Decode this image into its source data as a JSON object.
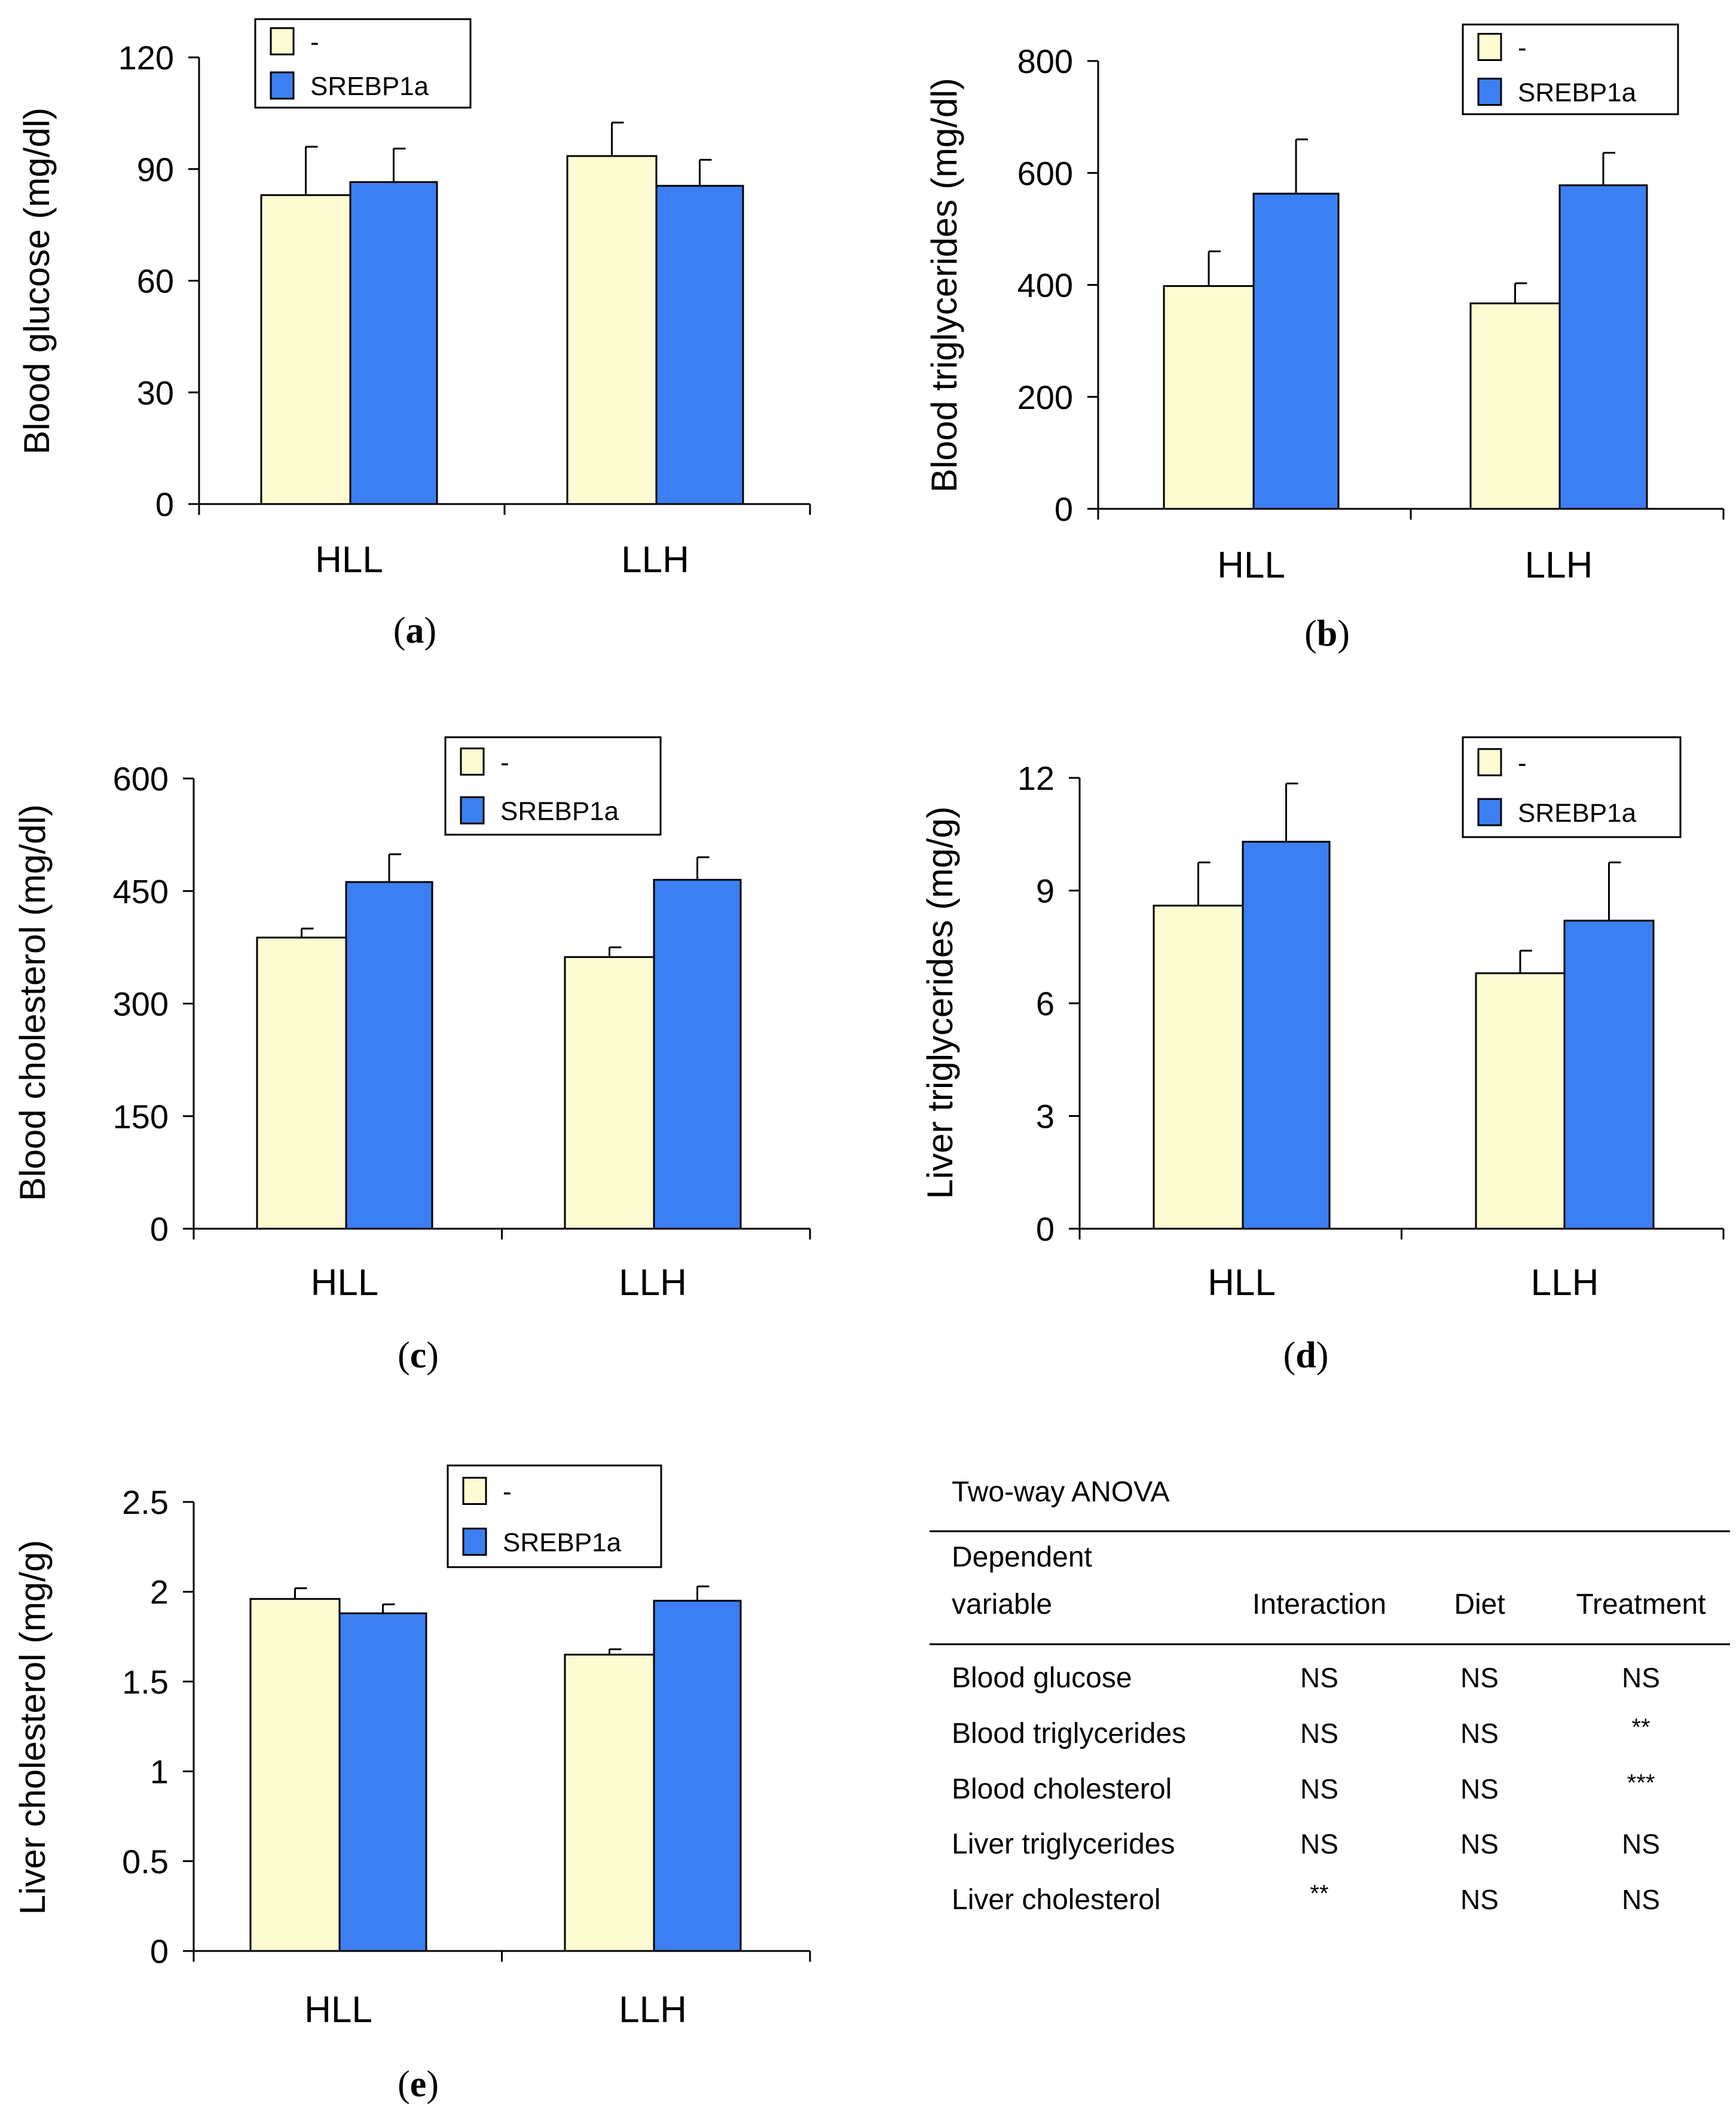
{
  "colors": {
    "control": "#fdfbd2",
    "srebp1a": "#3c7ff2",
    "stroke": "#000000"
  },
  "legend": [
    "-",
    "SREBP1a"
  ],
  "chart_data": [
    {
      "id": "a",
      "type": "bar",
      "panel_label": "a",
      "ylabel": "Blood glucose (mg/dl)",
      "categories": [
        "HLL",
        "LLH"
      ],
      "ylim": [
        0,
        120
      ],
      "yticks": [
        0,
        30,
        60,
        90,
        120
      ],
      "series": [
        {
          "name": "-",
          "values": [
            83,
            93.5
          ],
          "errors": [
            13,
            9
          ]
        },
        {
          "name": "SREBP1a",
          "values": [
            86.5,
            85.5
          ],
          "errors": [
            9,
            7
          ]
        }
      ]
    },
    {
      "id": "b",
      "type": "bar",
      "panel_label": "b",
      "ylabel": "Blood triglycerides (mg/dl)",
      "categories": [
        "HLL",
        "LLH"
      ],
      "ylim": [
        0,
        800
      ],
      "yticks": [
        0,
        200,
        400,
        600,
        800
      ],
      "series": [
        {
          "name": "-",
          "values": [
            398,
            367
          ],
          "errors": [
            62,
            36
          ]
        },
        {
          "name": "SREBP1a",
          "values": [
            563,
            578
          ],
          "errors": [
            97,
            58
          ]
        }
      ]
    },
    {
      "id": "c",
      "type": "bar",
      "panel_label": "c",
      "ylabel": "Blood cholesterol (mg/dl)",
      "categories": [
        "HLL",
        "LLH"
      ],
      "ylim": [
        0,
        600
      ],
      "yticks": [
        0,
        150,
        300,
        450,
        600
      ],
      "series": [
        {
          "name": "-",
          "values": [
            388,
            362
          ],
          "errors": [
            12,
            13
          ]
        },
        {
          "name": "SREBP1a",
          "values": [
            462,
            465
          ],
          "errors": [
            37,
            30
          ]
        }
      ]
    },
    {
      "id": "d",
      "type": "bar",
      "panel_label": "d",
      "ylabel": "Liver triglycerides (mg/g)",
      "categories": [
        "HLL",
        "LLH"
      ],
      "ylim": [
        0,
        12
      ],
      "yticks": [
        0,
        3,
        6,
        9,
        12
      ],
      "series": [
        {
          "name": "-",
          "values": [
            8.6,
            6.8
          ],
          "errors": [
            1.15,
            0.6
          ]
        },
        {
          "name": "SREBP1a",
          "values": [
            10.3,
            8.2
          ],
          "errors": [
            1.55,
            1.55
          ]
        }
      ]
    },
    {
      "id": "e",
      "type": "bar",
      "panel_label": "e",
      "ylabel": "Liver cholesterol (mg/g)",
      "categories": [
        "HLL",
        "LLH"
      ],
      "ylim": [
        0,
        2.5
      ],
      "yticks": [
        "0",
        "0.5",
        "1",
        "1.5",
        "2",
        "2.5"
      ],
      "series": [
        {
          "name": "-",
          "values": [
            1.96,
            1.65
          ],
          "errors": [
            0.06,
            0.03
          ]
        },
        {
          "name": "SREBP1a",
          "values": [
            1.88,
            1.95
          ],
          "errors": [
            0.05,
            0.08
          ]
        }
      ]
    }
  ],
  "anova": {
    "title": "Two-way ANOVA",
    "header_line1": "Dependent",
    "header_line2": "variable",
    "columns": [
      "Interaction",
      "Diet",
      "Treatment"
    ],
    "rows": [
      {
        "label": "Blood glucose",
        "values": [
          "NS",
          "NS",
          "NS"
        ]
      },
      {
        "label": "Blood triglycerides",
        "values": [
          "NS",
          "NS",
          "**"
        ]
      },
      {
        "label": "Blood cholesterol",
        "values": [
          "NS",
          "NS",
          "***"
        ]
      },
      {
        "label": "Liver triglycerides",
        "values": [
          "NS",
          "NS",
          "NS"
        ]
      },
      {
        "label": "Liver cholesterol",
        "values": [
          "**",
          "NS",
          "NS"
        ]
      }
    ]
  }
}
